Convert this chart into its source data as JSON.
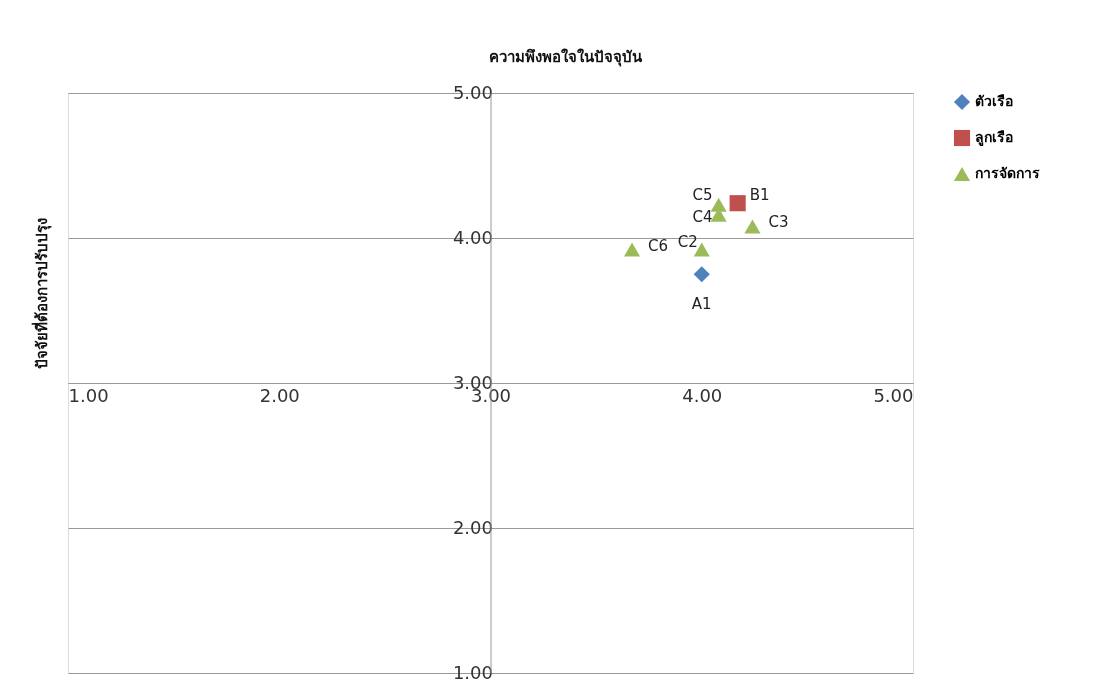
{
  "chart_data": {
    "type": "scatter",
    "title": "ความพึงพอใจในปัจจุบัน",
    "ylabel": "ปัจจัยที่ต้องการปรับปรุง",
    "xlim": [
      1,
      5
    ],
    "ylim": [
      1,
      5
    ],
    "xticks": [
      {
        "value": 1,
        "label": "1.00"
      },
      {
        "value": 2,
        "label": "2.00"
      },
      {
        "value": 3,
        "label": "3.00"
      },
      {
        "value": 4,
        "label": "4.00"
      },
      {
        "value": 5,
        "label": "5.00"
      }
    ],
    "yticks": [
      {
        "value": 1,
        "label": "1.00"
      },
      {
        "value": 2,
        "label": "2.00"
      },
      {
        "value": 3,
        "label": "3.00"
      },
      {
        "value": 4,
        "label": "4.00"
      },
      {
        "value": 5,
        "label": "5.00"
      }
    ],
    "grid": "y",
    "legend": "right",
    "series": [
      {
        "name": "ตัวเรือ",
        "color": "#4f81bd",
        "marker": "diamond",
        "x": [
          4.0
        ],
        "values": [
          3.75
        ]
      },
      {
        "name": "ลูกเรือ",
        "color": "#c0504d",
        "marker": "square",
        "x": [
          4.17
        ],
        "values": [
          4.24
        ]
      },
      {
        "name": "การจัดการ",
        "color": "#9bbb59",
        "marker": "triangle",
        "x": [
          4.08,
          4.08,
          4.24,
          4.0,
          3.67
        ],
        "values": [
          4.23,
          4.16,
          4.08,
          3.92,
          3.92
        ]
      }
    ],
    "annotations": [
      {
        "text": "A1",
        "x": 4.0,
        "y": 3.75
      },
      {
        "text": "B1",
        "x": 4.17,
        "y": 4.24
      },
      {
        "text": "C5",
        "x": 4.08,
        "y": 4.23
      },
      {
        "text": "C4",
        "x": 4.08,
        "y": 4.16
      },
      {
        "text": "C3",
        "x": 4.24,
        "y": 4.08
      },
      {
        "text": "C2",
        "x": 4.0,
        "y": 3.92
      },
      {
        "text": "C6",
        "x": 3.67,
        "y": 3.92
      }
    ]
  }
}
